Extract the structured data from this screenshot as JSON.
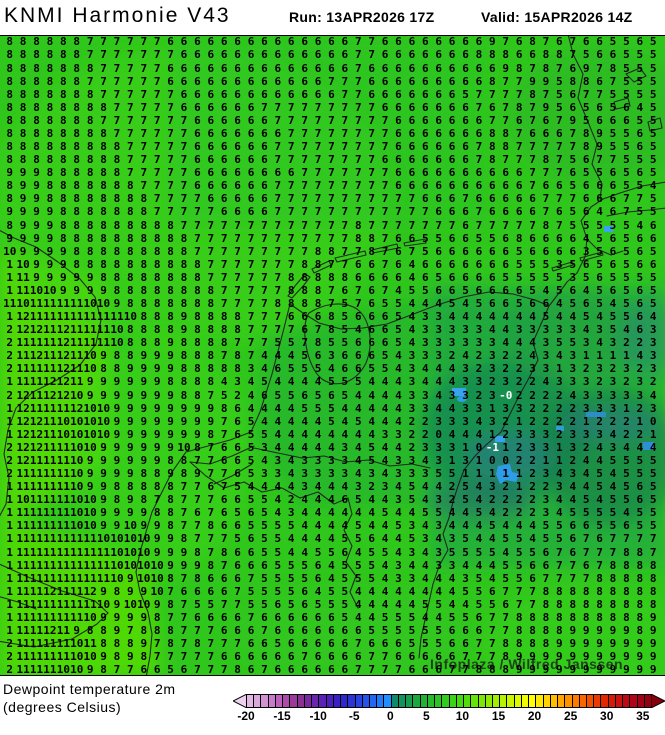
{
  "header": {
    "model_title": "KNMI Harmonie V43",
    "run_text": "Run: 13APR2026 17Z",
    "valid_text": "Valid: 15APR2026 14Z"
  },
  "footer": {
    "variable_line1": "Dewpoint temperature 2m",
    "variable_line2": "(degrees Celsius)"
  },
  "watermark": "Infoplaza / Wilfred Janssen",
  "colorbar": {
    "unit": "degrees Celsius",
    "min": -20,
    "max": 36,
    "left_arrow_color": "#ecd2ec",
    "right_arrow_color": "#85000c",
    "colors": [
      "#e2b7e2",
      "#dba8db",
      "#d391d3",
      "#c97ac9",
      "#bc60bc",
      "#ad4bad",
      "#9c3a9c",
      "#8b2f93",
      "#7a28a0",
      "#6a24ad",
      "#5a21b5",
      "#4a1fbd",
      "#3a20c4",
      "#2f28cc",
      "#2b35d6",
      "#2844e0",
      "#2554ea",
      "#2266f2",
      "#1f7bfa",
      "#1e90ff",
      "#0f8a6a",
      "#12945c",
      "#169e4e",
      "#1ba841",
      "#20b236",
      "#26bb2c",
      "#2cc324",
      "#33cb1d",
      "#3bd316",
      "#44da10",
      "#52de0b",
      "#66e309",
      "#7ae707",
      "#8eeb05",
      "#a2ef04",
      "#b6f303",
      "#caf602",
      "#defa01",
      "#f0fd00",
      "#ffff00",
      "#ffe900",
      "#ffd300",
      "#ffbd00",
      "#ffa700",
      "#ff9100",
      "#ff7a00",
      "#fb6400",
      "#f44e00",
      "#ec3900",
      "#e32700",
      "#d81b06",
      "#cc120e",
      "#bf0a14",
      "#b10418",
      "#a30016",
      "#930010"
    ],
    "ticks": [
      {
        "label": "-20",
        "value": -20
      },
      {
        "label": "-15",
        "value": -15
      },
      {
        "label": "-10",
        "value": -10
      },
      {
        "label": "-5",
        "value": -5
      },
      {
        "label": "0",
        "value": 0
      },
      {
        "label": "5",
        "value": 5
      },
      {
        "label": "10",
        "value": 10
      },
      {
        "label": "15",
        "value": 15
      },
      {
        "label": "20",
        "value": 20
      },
      {
        "label": "25",
        "value": 25
      },
      {
        "label": "30",
        "value": 30
      },
      {
        "label": "35",
        "value": 35
      }
    ]
  },
  "map_grid": {
    "cols": 49,
    "note": "dewpoint values in degrees Celsius; tokens starting with - are drawn white",
    "rows": [
      "8 8 8 8 8 8 7 7 7 7 7 7 6 6 6 6 6 6 6 6 6 6 6 6 6 6 7 7 6 6 6 6 6 6 6 6 9 7 6 8 7 6 7 6 6 5 5 6 5",
      "8 8 8 8 8 8 7 7 7 7 7 7 7 6 6 6 6 6 6 6 6 6 6 6 6 6 7 7 6 6 6 6 6 6 6 8 8 8 6 6 8 8 7 5 6 6 5 5 5",
      "8 8 8 8 8 8 8 7 7 7 7 7 6 6 6 6 6 6 6 6 6 6 6 6 6 6 7 6 6 6 6 6 6 6 6 6 6 9 8 7 8 7 6 9 7 8 5 5 5",
      "8 8 8 8 8 8 7 7 7 7 7 7 6 6 6 6 6 6 6 6 6 6 6 6 7 7 7 6 6 6 6 6 6 6 6 6 8 7 7 9 9 5 8 8 6 7 5 5 5",
      "8 8 8 8 8 8 8 7 7 7 7 7 7 6 6 6 6 6 6 6 6 6 6 6 6 7 7 6 6 6 6 6 6 6 5 7 7 7 7 8 7 5 6 7 7 5 5 5 5",
      "8 8 8 8 8 8 8 8 7 7 7 7 7 6 6 6 6 6 6 7 7 7 7 7 7 7 7 7 6 6 6 6 6 6 6 7 6 7 8 7 9 5 6 5 6 5 6 4 5",
      "8 8 8 8 8 8 8 7 7 7 7 7 7 7 6 6 6 6 6 6 7 7 7 7 7 7 7 7 7 6 6 6 6 6 6 6 7 7 6 7 6 7 9 5 6 6 6 5 5",
      "8 8 8 8 8 8 8 8 7 7 7 7 7 7 6 6 6 6 6 6 6 7 7 7 7 7 7 7 7 6 6 6 6 6 6 6 8 8 7 6 6 6 7 8 9 5 5 6 5",
      "8 8 8 8 8 8 8 8 8 7 7 7 7 7 6 6 6 6 6 6 7 7 7 7 7 7 7 7 7 6 6 6 6 6 6 7 8 8 7 7 7 7 7 8 9 5 5 6 5",
      "8 8 8 8 8 8 8 8 8 7 7 7 7 7 6 6 6 6 6 6 7 7 7 7 7 7 7 7 6 6 6 6 6 6 6 7 8 7 7 7 8 7 5 6 7 7 5 5 5",
      "9 9 9 8 8 8 8 8 8 7 7 7 7 7 6 6 6 6 6 6 6 6 7 7 7 7 7 7 7 6 6 6 6 6 6 6 6 6 6 7 7 7 6 5 5 6 5 6 5",
      "8 9 9 8 8 8 8 8 8 8 7 7 7 7 6 6 6 6 6 6 7 7 7 7 7 7 7 7 7 6 6 6 6 6 6 6 6 6 6 7 6 6 5 6 6 6 5 5 4",
      "8 9 9 8 8 8 8 8 8 8 8 7 7 7 7 6 6 6 6 6 7 7 7 7 7 7 7 7 7 7 7 6 6 6 7 6 6 6 6 6 7 7 7 6 6 6 7 7 5",
      "9 9 9 9 8 8 8 8 8 8 8 7 7 7 7 7 6 6 6 6 7 7 7 7 7 7 7 7 7 7 7 7 6 6 6 7 6 6 6 6 7 6 5 6 4 6 7 5 5",
      "8 9 9 9 8 8 8 8 8 8 8 8 8 7 7 7 7 7 7 7 7 7 7 7 7 7 8 7 7 7 7 7 7 7 6 7 7 7 7 7 8 7 5 5 5 5 5 4 6",
      "9 9 9 9 8 8 8 8 8 8 8 8 8 8 7 7 7 7 7 7 7 7 7 7 7 7 8 8 7 6 6 5 5 6 6 5 5 6 8 6 6 6 6 4 5 6 5 6 6",
      "10 9 9 9 9 8 8 8 8 8 8 8 8 8 7 7 7 7 7 7 7 7 7 8 8 7 7 8 7 6 7 5 6 6 6 6 6 6 5 6 6 6 6 3 5 6 5 6 5",
      "1 10 9 9 9 8 8 8 8 8 8 8 8 8 8 7 7 7 7 7 7 7 8 8 7 7 6 6 7 6 4 6 6 6 6 6 6 6 5 5 5 3 5 6 5 6 5 6 6",
      "1 11 9 9 9 9 9 8 8 8 8 8 8 8 8 7 7 7 7 7 7 8 8 8 8 8 6 6 6 6 4 6 5 6 6 6 6 5 5 5 5 5 3 5 6 5 5 5 5",
      "1 11 10 10 9 9 9 9 8 8 8 8 8 8 8 8 7 7 7 7 7 8 8 8 7 6 7 6 7 4 5 5 6 6 5 6 6 6 6 5 4 5 6 4 5 6 5 6 5",
      "11 10 11 11 11 11 10 10 9 8 8 8 8 8 8 8 7 7 7 7 8 8 8 8 7 5 7 6 5 5 4 4 4 5 4 5 6 6 5 6 6 4 5 6 5 4 5 6 5",
      "1 12 11 11 11 11 11 11 11 10 8 8 8 9 8 8 8 8 7 7 7 6 6 6 8 5 6 6 6 5 4 3 3 4 4 4 4 4 4 4 5 4 4 5 4 5 5 6 4",
      "2 12 12 11 12 11 11 11 10 8 8 8 8 9 8 8 8 8 7 7 7 7 6 7 8 5 4 6 6 5 4 3 3 3 3 3 4 4 3 3 3 3 3 4 3 5 4 6 3",
      "2 11 11 11 12 11 11 11 10 8 8 8 9 8 8 8 8 7 7 7 5 5 7 8 5 5 6 6 6 5 4 3 3 3 3 3 3 4 4 4 3 5 5 3 4 3 2 2 3",
      "2 11 12 11 12 11 10 9 8 8 9 9 9 8 8 8 7 8 7 4 4 4 5 6 3 6 6 6 5 4 3 3 3 2 4 2 3 2 2 4 3 4 3 1 1 1 1 4 3",
      "2 11 11 11 12 11 10 8 8 9 9 9 9 8 8 8 8 8 3 4 6 5 5 5 4 6 6 5 5 4 3 4 4 4 3 2 3 2 2 3 3 1 3 2 3 2 3 2 3",
      "1 11 11 12 12 11 9 9 9 9 9 9 8 8 8 8 4 3 4 5 4 4 4 4 5 5 5 4 4 4 3 4 4 4 3 3 2 3 2 2 4 3 3 3 2 3 2 3 2",
      "2 12 11 12 12 10 9 9 9 9 9 9 9 8 8 7 5 2 4 6 5 5 6 5 6 5 4 4 4 4 3 3 4 3 3 2 3 -0 2 2 2 2 4 3 3 3 3 3 4",
      "1 12 11 11 11 12 10 10 9 9 9 9 9 9 9 9 8 6 4 4 4 4 5 5 5 4 4 4 4 4 3 3 4 4 3 3 1 3 3 2 2 2 2 3 3 3 1 2 3",
      "1 12 12 11 10 10 10 10 9 9 9 9 9 9 9 9 7 6 5 4 4 4 4 4 5 4 5 4 4 4 2 2 3 3 3 4 3 2 1 2 2 2 2 1 2 2 2 1 0",
      "1 12 12 11 10 10 10 10 9 9 9 9 9 9 9 8 7 6 5 5 4 4 4 4 4 4 4 4 3 3 2 2 0 4 4 4 1 2 3 3 3 2 3 3 3 4 2 2 1",
      "2 12 12 11 11 10 10 9 9 9 9 9 9 10 8 7 6 6 5 3 4 4 4 4 4 3 4 5 4 4 2 3 3 3 1 0 -1 1 2 3 3 1 3 2 4 3 4 4 4",
      "2 12 11 11 11 10 9 9 9 9 9 9 8 8 7 7 6 6 5 4 3 4 3 3 3 3 4 5 4 3 3 4 3 1 3 1 0 0 2 2 1 1 2 4 4 5 5 5 5",
      "2 11 11 11 11 10 9 9 9 9 8 8 9 8 9 7 7 6 5 3 3 4 3 3 3 3 4 3 4 3 3 3 5 5 1 1 1 1 1 2 3 4 3 4 5 4 5 5 5",
      "1 11 11 11 11 10 9 9 8 8 8 8 8 7 7 6 7 5 4 4 4 4 3 4 4 4 3 2 3 4 5 4 4 2 5 4 3 2 1 2 2 3 4 4 5 4 5 6 5",
      "1 10 11 11 11 10 10 9 8 9 8 7 8 7 7 7 6 6 5 5 4 2 4 4 4 6 5 4 4 3 5 4 3 2 5 4 2 2 2 2 3 4 4 5 4 5 5 6 5",
      "1 11 11 11 11 10 10 9 9 9 9 8 8 7 6 7 6 5 6 5 4 3 4 4 4 4 4 4 5 4 4 5 5 4 4 5 4 2 2 2 3 4 5 5 5 5 4 5 5",
      "1 11 11 11 11 10 10 9 9 10 9 9 8 7 7 8 6 6 5 5 5 5 4 4 4 4 5 4 4 5 3 4 3 4 4 4 5 4 4 4 5 5 6 6 5 5 6 5 5",
      "1 11 11 11 11 11 11 10 10 10 10 9 9 8 7 7 7 5 6 5 5 4 4 4 4 5 5 6 4 4 5 3 4 3 5 4 4 5 5 4 5 5 6 7 6 7 7 7 7",
      "1 11 11 11 11 11 11 11 10 10 10 9 9 9 8 7 8 6 6 5 5 4 4 5 5 6 4 5 5 4 3 4 3 5 5 5 5 4 5 5 6 7 6 7 7 7 8 8 7",
      "1 11 11 11 11 11 11 11 10 10 10 10 9 9 9 8 7 6 6 6 5 5 5 6 4 5 5 5 4 3 4 4 3 3 4 4 4 5 5 6 6 7 7 6 7 8 8 8 8",
      "1 11 11 11 11 11 11 11 10 9 10 10 8 7 8 6 6 6 7 5 5 5 5 6 4 5 5 5 4 3 3 4 4 4 3 5 4 5 5 6 7 7 7 7 8 8 8 8 8",
      "1 11 11 12 11 11 12 9 8 9 9 10 7 6 6 6 6 7 5 5 5 5 6 4 5 5 4 4 4 4 4 4 4 4 5 5 6 7 7 7 8 8 8 8 8 8 8 8 8",
      "1 11 11 11 11 11 11 10 9 10 10 9 8 7 5 5 7 7 5 5 6 5 6 5 5 5 4 4 4 4 4 5 5 4 4 5 5 6 7 7 8 8 8 8 8 8 8 8 8",
      "1 11 11 11 11 11 10 9 9 9 9 8 7 7 6 6 6 6 7 6 6 6 6 6 6 5 4 4 5 5 5 4 4 5 5 6 7 7 8 8 8 8 8 8 8 8 8 8 9",
      "1 11 11 12 11 9 8 8 9 7 8 8 8 7 7 7 6 6 6 7 6 6 6 6 6 6 6 5 5 5 5 5 5 6 6 6 7 7 8 8 8 8 9 9 9 9 9 8 9",
      "2 11 11 11 11 10 11 8 8 8 9 7 8 7 8 7 7 7 6 6 5 6 6 6 6 6 7 6 6 6 5 5 5 6 6 7 7 8 8 8 8 9 9 9 9 9 9 9 9",
      "2 11 11 11 11 10 10 9 8 9 8 7 7 7 7 7 6 6 6 6 6 6 7 6 6 6 6 7 7 6 6 6 6 6 7 7 7 8 9 9 9 9 9 9 9 9 9 9 9",
      "2 11 11 11 10 10 9 8 7 7 6 6 5 6 7 7 7 8 6 7 6 6 6 6 6 6 7 7 7 7 6 6 6 7 7 8 8 8 9 9 9 9 9 9 9 9 9 9 9"
    ]
  }
}
